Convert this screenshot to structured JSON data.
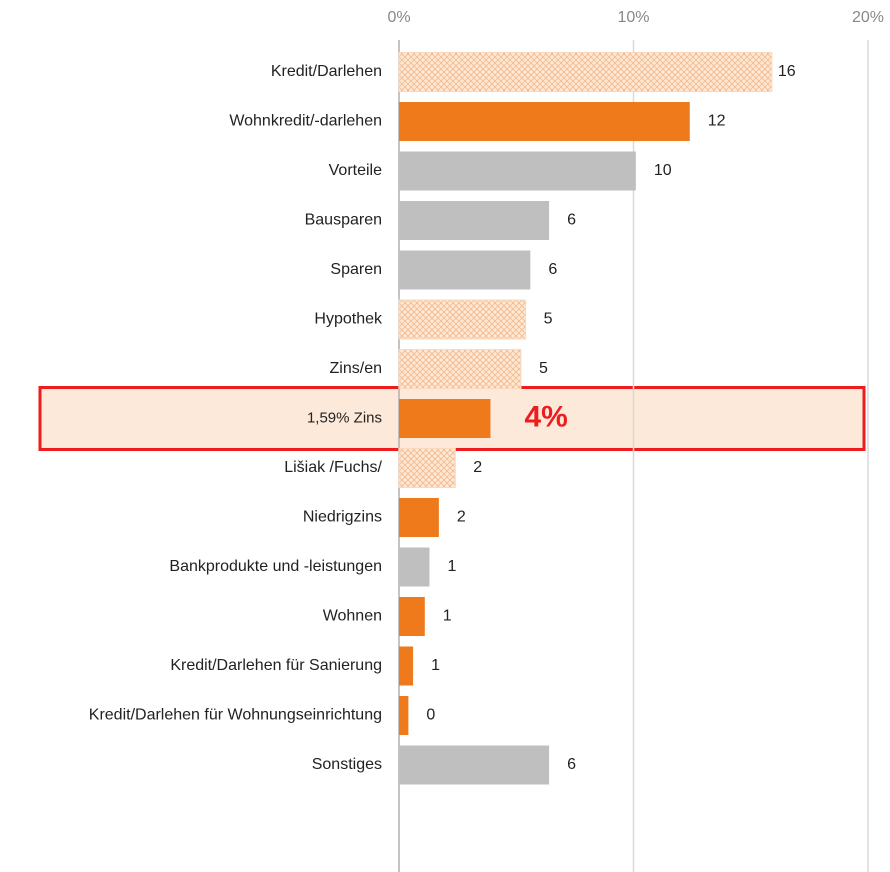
{
  "chart_data": {
    "type": "hbar",
    "categories": [
      "Kredit/Darlehen",
      "Wohnkredit/-darlehen",
      "Vorteile",
      "Bausparen",
      "Sparen",
      "Hypothek",
      "Zins/en",
      "1,59% Zins",
      "Lišiak /Fuchs/",
      "Niedrigzins",
      "Bankprodukte und -leistungen",
      "Wohnen",
      "Kredit/Darlehen für Sanierung",
      "Kredit/Darlehen für Wohnungseinrichtung",
      "Sonstiges"
    ],
    "values": [
      15.9,
      12.4,
      10.1,
      6.4,
      5.6,
      5.4,
      5.2,
      3.9,
      2.4,
      1.7,
      1.3,
      1.1,
      0.6,
      0.4,
      6.4
    ],
    "value_labels": [
      "16",
      "12",
      "10",
      "6",
      "6",
      "5",
      "5",
      "4%",
      "2",
      "2",
      "1",
      "1",
      "1",
      "0",
      "6"
    ],
    "colors": [
      "#fbd9bd",
      "#ee7a1b",
      "#bfbfbf",
      "#bfbfbf",
      "#bfbfbf",
      "#fbd9bd",
      "#fbd9bd",
      "#ee7a1b",
      "#fbd9bd",
      "#ee7a1b",
      "#bfbfbf",
      "#ee7a1b",
      "#ee7a1b",
      "#ee7a1b",
      "#bfbfbf"
    ],
    "hatched": [
      true,
      false,
      false,
      false,
      false,
      true,
      true,
      false,
      true,
      false,
      false,
      false,
      false,
      false,
      false
    ],
    "highlight": 7,
    "xlim": [
      0,
      20
    ],
    "xticks": [
      {
        "value": 0,
        "label": "0%"
      },
      {
        "value": 10,
        "label": "10%"
      },
      {
        "value": 20,
        "label": "20%"
      }
    ],
    "grid": true
  }
}
